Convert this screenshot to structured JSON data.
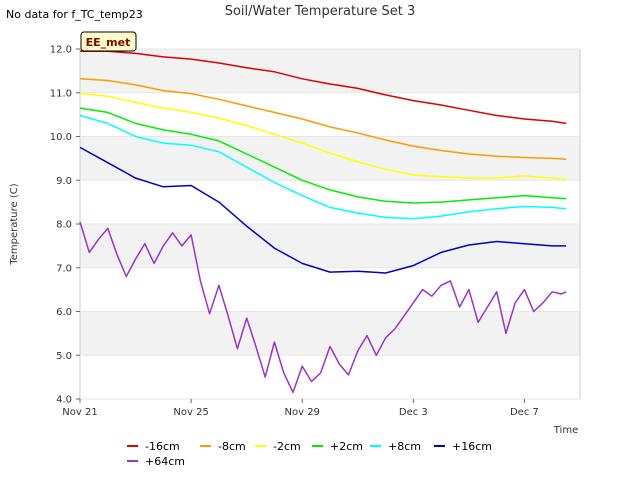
{
  "header": {
    "note": "No data for f_TC_temp23"
  },
  "badge": {
    "label": "EE_met",
    "fill": "#ffffcc",
    "text_color": "#8b0000"
  },
  "chart_data": {
    "type": "line",
    "title": "Soil/Water Temperature Set 3",
    "xlabel": "Time",
    "ylabel": "Temperature (C)",
    "xlim": [
      "2023-11-21",
      "2023-12-09"
    ],
    "ylim": [
      4.0,
      12.0
    ],
    "yticks": [
      4.0,
      5.0,
      6.0,
      7.0,
      8.0,
      9.0,
      10.0,
      11.0,
      12.0
    ],
    "xticks": [
      {
        "date": "2023-11-21",
        "label": "Nov 21"
      },
      {
        "date": "2023-11-25",
        "label": "Nov 25"
      },
      {
        "date": "2023-11-29",
        "label": "Nov 29"
      },
      {
        "date": "2023-12-03",
        "label": "Dec 3"
      },
      {
        "date": "2023-12-07",
        "label": "Dec 7"
      }
    ],
    "band_fill": "#f2f2f2",
    "legend_position": "bottom",
    "series": [
      {
        "name": "-16cm",
        "color": "#dd0000",
        "x": [
          "2023-11-21",
          "2023-11-22",
          "2023-11-23",
          "2023-11-24",
          "2023-11-25",
          "2023-11-26",
          "2023-11-27",
          "2023-11-28",
          "2023-11-29",
          "2023-11-30",
          "2023-12-01",
          "2023-12-02",
          "2023-12-03",
          "2023-12-04",
          "2023-12-05",
          "2023-12-06",
          "2023-12-07",
          "2023-12-08",
          "2023-12-08T12:00"
        ],
        "y": [
          11.95,
          11.95,
          11.9,
          11.82,
          11.77,
          11.68,
          11.57,
          11.48,
          11.32,
          11.2,
          11.1,
          10.95,
          10.82,
          10.72,
          10.6,
          10.48,
          10.4,
          10.35,
          10.3
        ]
      },
      {
        "name": "-8cm",
        "color": "#ff9900",
        "x": [
          "2023-11-21",
          "2023-11-22",
          "2023-11-23",
          "2023-11-24",
          "2023-11-25",
          "2023-11-26",
          "2023-11-27",
          "2023-11-28",
          "2023-11-29",
          "2023-11-30",
          "2023-12-01",
          "2023-12-02",
          "2023-12-03",
          "2023-12-04",
          "2023-12-05",
          "2023-12-06",
          "2023-12-07",
          "2023-12-08",
          "2023-12-08T12:00"
        ],
        "y": [
          11.32,
          11.28,
          11.18,
          11.05,
          10.98,
          10.85,
          10.7,
          10.55,
          10.4,
          10.22,
          10.08,
          9.92,
          9.78,
          9.68,
          9.6,
          9.55,
          9.52,
          9.5,
          9.48
        ]
      },
      {
        "name": "-2cm",
        "color": "#ffff00",
        "x": [
          "2023-11-21",
          "2023-11-22",
          "2023-11-23",
          "2023-11-24",
          "2023-11-25",
          "2023-11-26",
          "2023-11-27",
          "2023-11-28",
          "2023-11-29",
          "2023-11-30",
          "2023-12-01",
          "2023-12-02",
          "2023-12-03",
          "2023-12-04",
          "2023-12-05",
          "2023-12-06",
          "2023-12-07",
          "2023-12-08",
          "2023-12-08T12:00"
        ],
        "y": [
          10.98,
          10.92,
          10.78,
          10.65,
          10.55,
          10.42,
          10.25,
          10.05,
          9.85,
          9.62,
          9.42,
          9.25,
          9.12,
          9.08,
          9.05,
          9.05,
          9.1,
          9.05,
          9.02
        ]
      },
      {
        "name": "+2cm",
        "color": "#00ee00",
        "x": [
          "2023-11-21",
          "2023-11-22",
          "2023-11-23",
          "2023-11-24",
          "2023-11-25",
          "2023-11-26",
          "2023-11-27",
          "2023-11-28",
          "2023-11-29",
          "2023-11-30",
          "2023-12-01",
          "2023-12-02",
          "2023-12-03",
          "2023-12-04",
          "2023-12-05",
          "2023-12-06",
          "2023-12-07",
          "2023-12-08",
          "2023-12-08T12:00"
        ],
        "y": [
          10.65,
          10.55,
          10.3,
          10.15,
          10.05,
          9.9,
          9.6,
          9.3,
          9.0,
          8.78,
          8.62,
          8.52,
          8.48,
          8.5,
          8.55,
          8.6,
          8.65,
          8.6,
          8.58
        ]
      },
      {
        "name": "+8cm",
        "color": "#00ffff",
        "x": [
          "2023-11-21",
          "2023-11-22",
          "2023-11-23",
          "2023-11-24",
          "2023-11-25",
          "2023-11-26",
          "2023-11-27",
          "2023-11-28",
          "2023-11-29",
          "2023-11-30",
          "2023-12-01",
          "2023-12-02",
          "2023-12-03",
          "2023-12-04",
          "2023-12-05",
          "2023-12-06",
          "2023-12-07",
          "2023-12-08",
          "2023-12-08T12:00"
        ],
        "y": [
          10.48,
          10.3,
          10.0,
          9.85,
          9.8,
          9.65,
          9.3,
          8.95,
          8.65,
          8.38,
          8.25,
          8.15,
          8.12,
          8.18,
          8.28,
          8.35,
          8.4,
          8.38,
          8.35
        ]
      },
      {
        "name": "+16cm",
        "color": "#0000cc",
        "x": [
          "2023-11-21",
          "2023-11-22",
          "2023-11-23",
          "2023-11-24",
          "2023-11-25",
          "2023-11-26",
          "2023-11-27",
          "2023-11-28",
          "2023-11-29",
          "2023-11-30",
          "2023-12-01",
          "2023-12-02",
          "2023-12-03",
          "2023-12-04",
          "2023-12-05",
          "2023-12-06",
          "2023-12-07",
          "2023-12-08",
          "2023-12-08T12:00"
        ],
        "y": [
          9.75,
          9.4,
          9.05,
          8.85,
          8.88,
          8.5,
          7.95,
          7.45,
          7.1,
          6.9,
          6.92,
          6.88,
          7.05,
          7.35,
          7.52,
          7.6,
          7.55,
          7.5,
          7.5
        ]
      },
      {
        "name": "+64cm",
        "color": "#9933cc",
        "x": [
          "2023-11-21",
          "2023-11-21T08:00",
          "2023-11-21T16:00",
          "2023-11-22",
          "2023-11-22T08:00",
          "2023-11-22T16:00",
          "2023-11-23",
          "2023-11-23T08:00",
          "2023-11-23T16:00",
          "2023-11-24",
          "2023-11-24T08:00",
          "2023-11-24T16:00",
          "2023-11-25",
          "2023-11-25T08:00",
          "2023-11-25T16:00",
          "2023-11-26",
          "2023-11-26T08:00",
          "2023-11-26T16:00",
          "2023-11-27",
          "2023-11-27T08:00",
          "2023-11-27T16:00",
          "2023-11-28",
          "2023-11-28T08:00",
          "2023-11-28T16:00",
          "2023-11-29",
          "2023-11-29T08:00",
          "2023-11-29T16:00",
          "2023-11-30",
          "2023-11-30T08:00",
          "2023-11-30T16:00",
          "2023-12-01",
          "2023-12-01T08:00",
          "2023-12-01T16:00",
          "2023-12-02",
          "2023-12-02T08:00",
          "2023-12-02T16:00",
          "2023-12-03",
          "2023-12-03T08:00",
          "2023-12-03T16:00",
          "2023-12-04",
          "2023-12-04T08:00",
          "2023-12-04T16:00",
          "2023-12-05",
          "2023-12-05T08:00",
          "2023-12-05T16:00",
          "2023-12-06",
          "2023-12-06T08:00",
          "2023-12-06T16:00",
          "2023-12-07",
          "2023-12-07T08:00",
          "2023-12-07T16:00",
          "2023-12-08",
          "2023-12-08T08:00",
          "2023-12-08T12:00"
        ],
        "y": [
          8.05,
          7.35,
          7.65,
          7.9,
          7.3,
          6.8,
          7.2,
          7.55,
          7.1,
          7.5,
          7.8,
          7.5,
          7.75,
          6.7,
          5.95,
          6.6,
          5.9,
          5.15,
          5.85,
          5.2,
          4.5,
          5.3,
          4.6,
          4.15,
          4.75,
          4.4,
          4.6,
          5.2,
          4.8,
          4.55,
          5.1,
          5.45,
          5.0,
          5.4,
          5.6,
          5.9,
          6.2,
          6.5,
          6.35,
          6.6,
          6.7,
          6.1,
          6.5,
          5.75,
          6.1,
          6.45,
          5.5,
          6.2,
          6.5,
          6.0,
          6.2,
          6.45,
          6.4,
          6.45
        ]
      }
    ]
  }
}
